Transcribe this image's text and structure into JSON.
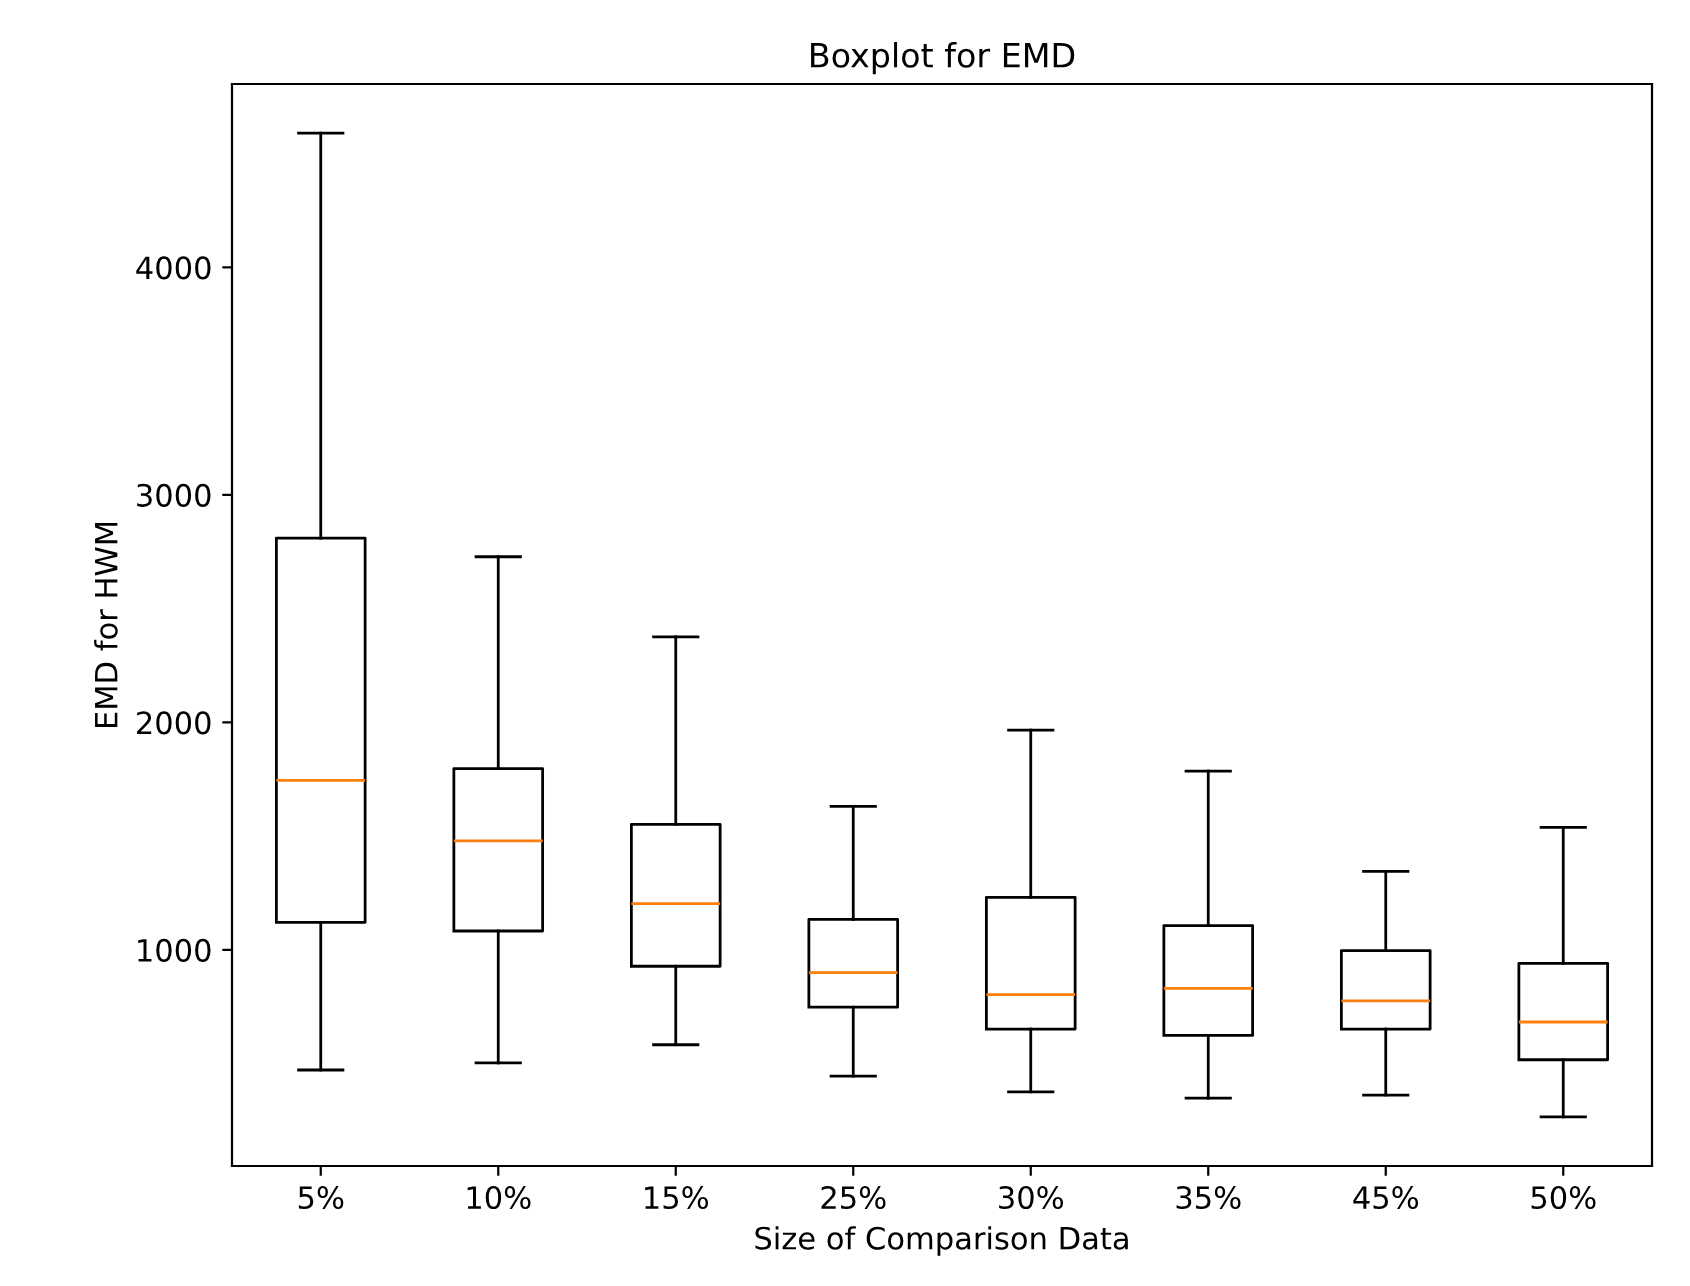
{
  "chart_data": {
    "type": "box",
    "title": "Boxplot for EMD",
    "xlabel": "Size of Comparison Data",
    "ylabel": "EMD for HWM",
    "categories": [
      "5%",
      "10%",
      "15%",
      "25%",
      "30%",
      "35%",
      "45%",
      "50%"
    ],
    "boxes": [
      {
        "low": 472,
        "q1": 1121,
        "median": 1745,
        "q3": 2810,
        "high": 4590
      },
      {
        "low": 503,
        "q1": 1083,
        "median": 1479,
        "q3": 1797,
        "high": 2728
      },
      {
        "low": 583,
        "q1": 928,
        "median": 1203,
        "q3": 1552,
        "high": 2376
      },
      {
        "low": 445,
        "q1": 748,
        "median": 900,
        "q3": 1134,
        "high": 1631
      },
      {
        "low": 376,
        "q1": 652,
        "median": 803,
        "q3": 1231,
        "high": 1966
      },
      {
        "low": 348,
        "q1": 624,
        "median": 831,
        "q3": 1107,
        "high": 1786
      },
      {
        "low": 362,
        "q1": 652,
        "median": 776,
        "q3": 997,
        "high": 1345
      },
      {
        "low": 266,
        "q1": 517,
        "median": 683,
        "q3": 941,
        "high": 1538
      }
    ],
    "ylim": [
      50,
      4806
    ],
    "yticks": [
      1000,
      2000,
      3000,
      4000
    ],
    "grid": false
  }
}
